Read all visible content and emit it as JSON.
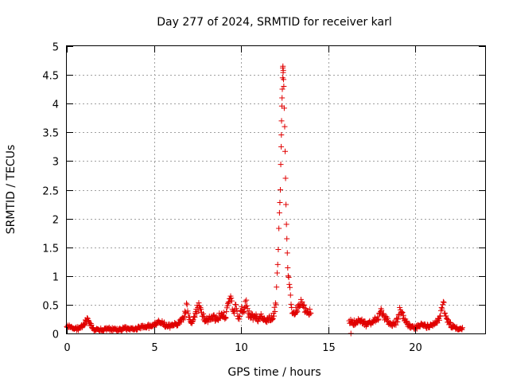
{
  "chart_data": {
    "type": "scatter",
    "title": "Day 277 of 2024, SRMTID for receiver karl",
    "xlabel": "GPS time / hours",
    "ylabel": "SRMTID / TECUs",
    "xlim": [
      0,
      24
    ],
    "ylim": [
      0,
      5
    ],
    "x_ticks": [
      "0",
      "5",
      "10",
      "15",
      "20"
    ],
    "y_ticks": [
      "0",
      "0.5",
      "1",
      "1.5",
      "2",
      "2.5",
      "3",
      "3.5",
      "4",
      "4.5",
      "5"
    ],
    "grid": true,
    "marker": "+",
    "marker_color": "#e00000",
    "series": [
      {
        "name": "karl",
        "x": [
          0.0,
          0.3,
          0.6,
          0.9,
          1.1,
          1.2,
          1.3,
          1.5,
          1.8,
          2.1,
          2.4,
          2.7,
          3.0,
          3.3,
          3.6,
          3.9,
          4.2,
          4.5,
          4.8,
          5.0,
          5.2,
          5.5,
          5.8,
          6.1,
          6.4,
          6.6,
          6.8,
          6.9,
          7.0,
          7.2,
          7.4,
          7.6,
          7.7,
          7.8,
          8.0,
          8.3,
          8.6,
          8.9,
          9.1,
          9.3,
          9.4,
          9.5,
          9.6,
          9.7,
          9.8,
          9.9,
          10.0,
          10.2,
          10.3,
          10.4,
          10.6,
          10.8,
          11.0,
          11.2,
          11.4,
          11.6,
          11.8,
          12.0,
          12.1,
          12.2,
          12.25,
          12.3,
          12.32,
          12.35,
          12.38,
          12.4,
          12.42,
          12.45,
          12.5,
          12.55,
          12.6,
          12.65,
          12.7,
          12.8,
          12.9,
          13.0,
          13.2,
          13.4,
          13.5,
          13.6,
          13.8,
          14.0,
          16.2,
          16.4,
          16.6,
          16.9,
          17.2,
          17.5,
          17.8,
          18.0,
          18.2,
          18.5,
          18.8,
          19.0,
          19.1,
          19.2,
          19.4,
          19.6,
          19.8,
          20.0,
          20.3,
          20.6,
          20.9,
          21.2,
          21.4,
          21.5,
          21.6,
          21.7,
          21.9,
          22.1,
          22.4,
          22.7
        ],
        "y": [
          0.12,
          0.1,
          0.08,
          0.12,
          0.22,
          0.26,
          0.18,
          0.08,
          0.07,
          0.06,
          0.08,
          0.07,
          0.06,
          0.09,
          0.07,
          0.08,
          0.1,
          0.11,
          0.13,
          0.15,
          0.2,
          0.18,
          0.12,
          0.14,
          0.18,
          0.25,
          0.35,
          0.5,
          0.28,
          0.2,
          0.38,
          0.48,
          0.42,
          0.3,
          0.22,
          0.3,
          0.25,
          0.35,
          0.28,
          0.55,
          0.65,
          0.42,
          0.35,
          0.5,
          0.3,
          0.25,
          0.4,
          0.45,
          0.58,
          0.35,
          0.28,
          0.3,
          0.25,
          0.3,
          0.22,
          0.28,
          0.25,
          0.5,
          1.2,
          2.1,
          2.5,
          3.25,
          3.7,
          4.1,
          4.45,
          4.65,
          4.58,
          4.3,
          3.6,
          2.7,
          1.9,
          1.4,
          1.0,
          0.8,
          0.45,
          0.35,
          0.4,
          0.5,
          0.55,
          0.45,
          0.38,
          0.35,
          0.22,
          0.18,
          0.2,
          0.22,
          0.15,
          0.2,
          0.25,
          0.38,
          0.3,
          0.18,
          0.15,
          0.25,
          0.45,
          0.38,
          0.22,
          0.15,
          0.12,
          0.1,
          0.15,
          0.12,
          0.15,
          0.18,
          0.3,
          0.45,
          0.55,
          0.35,
          0.2,
          0.12,
          0.08,
          0.1
        ],
        "outliers": [
          {
            "x": 16.3,
            "y": 0.0
          }
        ]
      }
    ]
  }
}
